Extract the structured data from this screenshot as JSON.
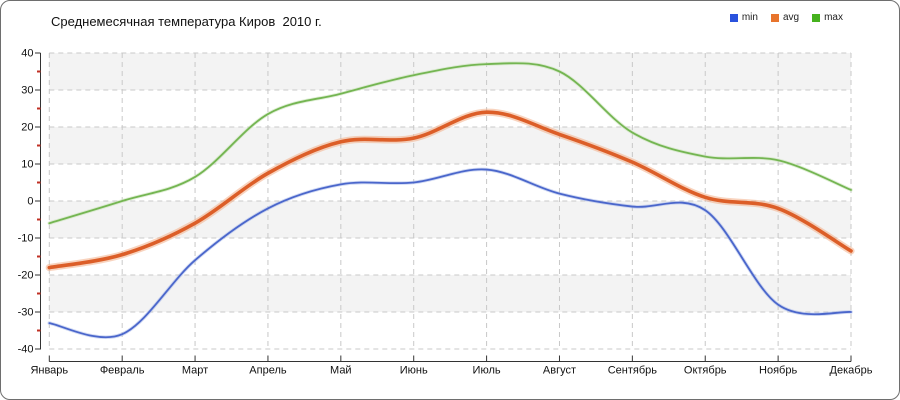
{
  "legend": {
    "items": [
      {
        "label": "min",
        "color": "#2a52dd"
      },
      {
        "label": "avg",
        "color": "#e8742c"
      },
      {
        "label": "max",
        "color": "#46b21e"
      }
    ]
  },
  "chart_data": {
    "type": "line",
    "title": "Среднемесячная температура Киров  2010 г.",
    "categories": [
      "Январь",
      "Февраль",
      "Март",
      "Апрель",
      "Май",
      "Июнь",
      "Июль",
      "Август",
      "Сентябрь",
      "Октябрь",
      "Ноябрь",
      "Декабрь"
    ],
    "series": [
      {
        "name": "min",
        "color": "#4a66cb",
        "halo": "#aab9e9",
        "width": 1.8,
        "values": [
          -33,
          -36,
          -16,
          -2,
          4.5,
          5,
          8.5,
          2,
          -1.5,
          -2.5,
          -28,
          -30
        ]
      },
      {
        "name": "avg",
        "color": "#dc5e28",
        "halo": "#f3ae88",
        "width": 3.6,
        "values": [
          -18,
          -14.5,
          -6,
          7.5,
          16,
          17,
          24,
          18,
          10.5,
          1,
          -2,
          -13.5
        ]
      },
      {
        "name": "max",
        "color": "#74b552",
        "halo": "#c6e2b4",
        "width": 1.8,
        "values": [
          -6,
          0,
          6.5,
          23.5,
          29,
          34,
          37,
          35,
          18.5,
          12,
          11,
          3
        ]
      }
    ],
    "xlabel": "",
    "ylabel": "",
    "ylim": [
      -40,
      40
    ],
    "yticks": [
      40,
      30,
      20,
      10,
      0,
      -10,
      -20,
      -30,
      -40
    ],
    "minor_tick_step": 5,
    "minor_tick_color": "#c03024",
    "grid": true,
    "legend_position": "top-right",
    "band_fill": "#f3f3f3",
    "grid_color": "#c8c8c8",
    "axis_color": "#333333"
  }
}
